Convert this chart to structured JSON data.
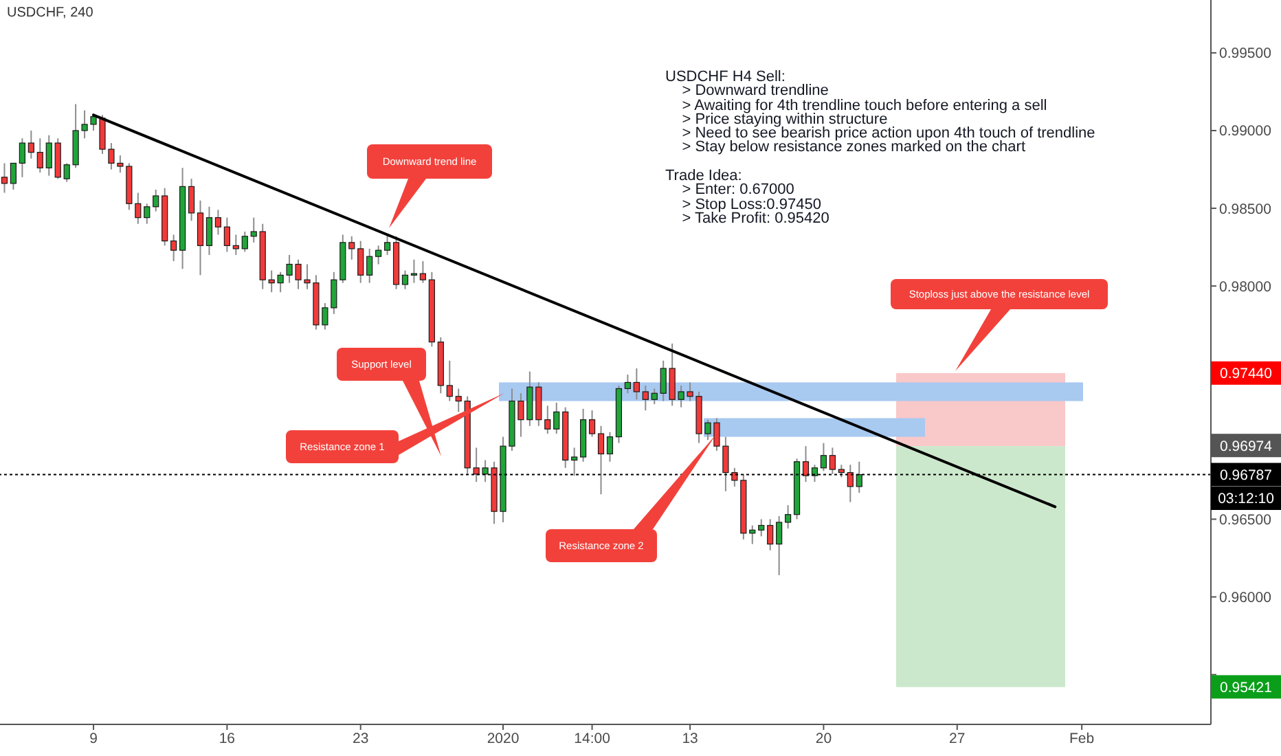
{
  "chart_data": {
    "type": "candlestick",
    "title": "USDCHF, 240",
    "categories": [
      null,
      null,
      null,
      null,
      null,
      null,
      null,
      null,
      null,
      null,
      "9",
      null,
      null,
      null,
      null,
      null,
      null,
      null,
      null,
      null,
      null,
      null,
      null,
      null,
      null,
      "16",
      null,
      null,
      null,
      null,
      null,
      null,
      null,
      null,
      null,
      null,
      null,
      null,
      null,
      null,
      "23",
      null,
      null,
      null,
      null,
      null,
      null,
      null,
      null,
      null,
      null,
      null,
      null,
      null,
      null,
      null,
      "2020",
      null,
      null,
      null,
      null,
      null,
      null,
      null,
      null,
      null,
      "14:00",
      null,
      null,
      null,
      null,
      null,
      null,
      null,
      null,
      null,
      null,
      "13",
      null,
      null,
      null,
      null,
      null,
      null,
      null,
      null,
      null,
      null,
      null,
      null,
      null,
      null,
      "20",
      null,
      null,
      null,
      null,
      null,
      null,
      null,
      null,
      null,
      null,
      null,
      null,
      null,
      null,
      "27",
      null,
      null,
      null,
      null,
      null,
      null,
      null,
      null,
      null,
      null,
      null,
      null,
      null,
      "Feb",
      null,
      null,
      null,
      null,
      null,
      null,
      null,
      null,
      null,
      null,
      null,
      null,
      null,
      null
    ],
    "ohlc": [
      [
        0.987,
        0.9879,
        0.986,
        0.9866
      ],
      [
        0.9866,
        0.9879,
        0.9862,
        0.9879
      ],
      [
        0.9879,
        0.9895,
        0.987,
        0.9892
      ],
      [
        0.9892,
        0.99,
        0.9882,
        0.9886
      ],
      [
        0.9886,
        0.9895,
        0.9873,
        0.9876
      ],
      [
        0.9876,
        0.9897,
        0.9871,
        0.9892
      ],
      [
        0.9892,
        0.9895,
        0.9869,
        0.987
      ],
      [
        0.9869,
        0.9879,
        0.9867,
        0.9878
      ],
      [
        0.9878,
        0.9917,
        0.9876,
        0.99
      ],
      [
        0.99,
        0.9913,
        0.9895,
        0.9904
      ],
      [
        0.9904,
        0.9911,
        0.99,
        0.9909
      ],
      [
        0.9908,
        0.991,
        0.9885,
        0.9888
      ],
      [
        0.9888,
        0.9892,
        0.9875,
        0.9879
      ],
      [
        0.9879,
        0.9884,
        0.9873,
        0.9877
      ],
      [
        0.9877,
        0.9879,
        0.9849,
        0.9853
      ],
      [
        0.9853,
        0.986,
        0.984,
        0.9844
      ],
      [
        0.9844,
        0.9853,
        0.984,
        0.9851
      ],
      [
        0.9851,
        0.9862,
        0.9848,
        0.9858
      ],
      [
        0.9858,
        0.9863,
        0.9826,
        0.9829
      ],
      [
        0.9829,
        0.9833,
        0.9816,
        0.9823
      ],
      [
        0.9823,
        0.9876,
        0.9811,
        0.9864
      ],
      [
        0.9864,
        0.9869,
        0.9842,
        0.9847
      ],
      [
        0.9847,
        0.9855,
        0.9807,
        0.9826
      ],
      [
        0.9826,
        0.9851,
        0.982,
        0.9844
      ],
      [
        0.9844,
        0.9849,
        0.9833,
        0.9838
      ],
      [
        0.9838,
        0.9844,
        0.9822,
        0.9826
      ],
      [
        0.9826,
        0.9833,
        0.982,
        0.9824
      ],
      [
        0.9824,
        0.9835,
        0.9822,
        0.9832
      ],
      [
        0.9832,
        0.9844,
        0.9828,
        0.9835
      ],
      [
        0.9835,
        0.984,
        0.9798,
        0.9804
      ],
      [
        0.9804,
        0.981,
        0.9796,
        0.9802
      ],
      [
        0.9802,
        0.9809,
        0.9796,
        0.9807
      ],
      [
        0.9807,
        0.982,
        0.9802,
        0.9814
      ],
      [
        0.9814,
        0.9817,
        0.9798,
        0.9804
      ],
      [
        0.9804,
        0.9814,
        0.9798,
        0.9802
      ],
      [
        0.9802,
        0.9807,
        0.9772,
        0.9775
      ],
      [
        0.9775,
        0.9789,
        0.9772,
        0.9786
      ],
      [
        0.9786,
        0.9809,
        0.9782,
        0.9804
      ],
      [
        0.9804,
        0.9833,
        0.9802,
        0.9828
      ],
      [
        0.9828,
        0.9832,
        0.9817,
        0.9824
      ],
      [
        0.9824,
        0.9829,
        0.9802,
        0.9807
      ],
      [
        0.9807,
        0.9824,
        0.9802,
        0.9819
      ],
      [
        0.9819,
        0.9826,
        0.9814,
        0.9823
      ],
      [
        0.9823,
        0.9833,
        0.982,
        0.9828
      ],
      [
        0.9828,
        0.9832,
        0.9798,
        0.9801
      ],
      [
        0.9801,
        0.981,
        0.9798,
        0.9807
      ],
      [
        0.9807,
        0.9817,
        0.9802,
        0.9808
      ],
      [
        0.9808,
        0.9816,
        0.9802,
        0.9804
      ],
      [
        0.9804,
        0.9809,
        0.9761,
        0.9764
      ],
      [
        0.9764,
        0.9767,
        0.9731,
        0.9736
      ],
      [
        0.9736,
        0.9752,
        0.9726,
        0.9729
      ],
      [
        0.9729,
        0.9734,
        0.9719,
        0.9726
      ],
      [
        0.9726,
        0.9729,
        0.9679,
        0.9683
      ],
      [
        0.9683,
        0.9696,
        0.9674,
        0.9679
      ],
      [
        0.9679,
        0.9688,
        0.9674,
        0.9683
      ],
      [
        0.9683,
        0.9687,
        0.9647,
        0.9655
      ],
      [
        0.9655,
        0.9703,
        0.9648,
        0.9697
      ],
      [
        0.9697,
        0.9734,
        0.9694,
        0.9726
      ],
      [
        0.9726,
        0.9731,
        0.9703,
        0.9714
      ],
      [
        0.9714,
        0.9745,
        0.971,
        0.9735
      ],
      [
        0.9735,
        0.9738,
        0.971,
        0.9714
      ],
      [
        0.9714,
        0.9723,
        0.9705,
        0.9708
      ],
      [
        0.9708,
        0.9725,
        0.9705,
        0.9719
      ],
      [
        0.9719,
        0.9722,
        0.9683,
        0.9688
      ],
      [
        0.9688,
        0.9696,
        0.9678,
        0.969
      ],
      [
        0.969,
        0.9721,
        0.9687,
        0.9714
      ],
      [
        0.9714,
        0.972,
        0.9703,
        0.9705
      ],
      [
        0.9705,
        0.971,
        0.9666,
        0.9692
      ],
      [
        0.9692,
        0.9706,
        0.9687,
        0.9703
      ],
      [
        0.9703,
        0.9736,
        0.9699,
        0.9734
      ],
      [
        0.9734,
        0.9743,
        0.9731,
        0.9738
      ],
      [
        0.9738,
        0.9747,
        0.9727,
        0.9732
      ],
      [
        0.9732,
        0.9736,
        0.972,
        0.9727
      ],
      [
        0.9727,
        0.9734,
        0.9724,
        0.9731
      ],
      [
        0.9731,
        0.9752,
        0.9726,
        0.9747
      ],
      [
        0.9747,
        0.9763,
        0.9723,
        0.9727
      ],
      [
        0.9727,
        0.9736,
        0.9722,
        0.9732
      ],
      [
        0.9732,
        0.9738,
        0.9726,
        0.9729
      ],
      [
        0.9729,
        0.9732,
        0.9699,
        0.9705
      ],
      [
        0.9705,
        0.9714,
        0.9701,
        0.9712
      ],
      [
        0.9712,
        0.9715,
        0.9694,
        0.9697
      ],
      [
        0.9697,
        0.9703,
        0.9668,
        0.968
      ],
      [
        0.968,
        0.9683,
        0.9671,
        0.9675
      ],
      [
        0.9675,
        0.9679,
        0.9637,
        0.9641
      ],
      [
        0.9641,
        0.9646,
        0.9634,
        0.9643
      ],
      [
        0.9643,
        0.965,
        0.9639,
        0.9646
      ],
      [
        0.9646,
        0.965,
        0.963,
        0.9634
      ],
      [
        0.9634,
        0.9652,
        0.9614,
        0.9648
      ],
      [
        0.9648,
        0.9659,
        0.9644,
        0.9653
      ],
      [
        0.9653,
        0.9689,
        0.965,
        0.9687
      ],
      [
        0.9687,
        0.9697,
        0.9674,
        0.9678
      ],
      [
        0.9678,
        0.9685,
        0.9674,
        0.9683
      ],
      [
        0.9683,
        0.9699,
        0.9681,
        0.9691
      ],
      [
        0.9691,
        0.9696,
        0.9679,
        0.9682
      ],
      [
        0.9682,
        0.9685,
        0.9677,
        0.968
      ],
      [
        0.968,
        0.9685,
        0.9661,
        0.9671
      ],
      [
        0.9671,
        0.9687,
        0.9667,
        0.96787
      ],
      null,
      null,
      null,
      null,
      null,
      null,
      null,
      null,
      null,
      null,
      null,
      null,
      null,
      null,
      null,
      null,
      null,
      null,
      null,
      null,
      null,
      null,
      null,
      null,
      null,
      null,
      null,
      null,
      null,
      null,
      null,
      null,
      null,
      null,
      null,
      null,
      null,
      null,
      null
    ],
    "colors": [
      "#f23a3a",
      "#21a53a",
      "#21a53a",
      "#f23a3a",
      "#f23a3a",
      "#21a53a",
      "#f23a3a",
      "#21a53a",
      "#21a53a",
      "#21a53a",
      "#21a53a",
      "#f23a3a",
      "#f23a3a",
      "#f23a3a",
      "#f23a3a",
      "#f23a3a",
      "#21a53a",
      "#21a53a",
      "#f23a3a",
      "#f23a3a",
      "#21a53a",
      "#f23a3a",
      "#f23a3a",
      "#21a53a",
      "#f23a3a",
      "#f23a3a",
      "#f23a3a",
      "#21a53a",
      "#21a53a",
      "#f23a3a",
      "#f23a3a",
      "#21a53a",
      "#21a53a",
      "#f23a3a",
      "#f23a3a",
      "#f23a3a",
      "#21a53a",
      "#21a53a",
      "#21a53a",
      "#f23a3a",
      "#f23a3a",
      "#21a53a",
      "#21a53a",
      "#21a53a",
      "#f23a3a",
      "#21a53a",
      "#21a53a",
      "#f23a3a",
      "#f23a3a",
      "#f23a3a",
      "#f23a3a",
      "#f23a3a",
      "#f23a3a",
      "#f23a3a",
      "#21a53a",
      "#f23a3a",
      "#21a53a",
      "#21a53a",
      "#f23a3a",
      "#21a53a",
      "#f23a3a",
      "#f23a3a",
      "#21a53a",
      "#f23a3a",
      "#21a53a",
      "#21a53a",
      "#f23a3a",
      "#f23a3a",
      "#21a53a",
      "#21a53a",
      "#21a53a",
      "#f23a3a",
      "#f23a3a",
      "#21a53a",
      "#21a53a",
      "#f23a3a",
      "#21a53a",
      "#f23a3a",
      "#f23a3a",
      "#21a53a",
      "#f23a3a",
      "#f23a3a",
      "#f23a3a",
      "#f23a3a",
      "#21a53a",
      "#21a53a",
      "#f23a3a",
      "#21a53a",
      "#21a53a",
      "#21a53a",
      "#f23a3a",
      "#21a53a",
      "#21a53a",
      "#f23a3a",
      "#f23a3a",
      "#f23a3a",
      "#21a53a",
      null,
      null,
      null,
      null,
      null,
      null,
      null,
      null,
      null,
      null,
      null,
      null,
      null,
      null,
      null,
      null,
      null,
      null,
      null,
      null,
      null,
      null,
      null,
      null,
      null,
      null,
      null,
      null,
      null,
      null,
      null,
      null,
      null,
      null,
      null,
      null,
      null,
      null,
      null
    ],
    "series": [
      {
        "type": "line",
        "color": "#000000",
        "values": [
          null,
          null,
          null,
          null,
          null,
          null,
          null,
          null,
          null,
          null,
          0.991,
          null,
          null,
          null,
          null,
          null,
          null,
          null,
          null,
          null,
          null,
          null,
          null,
          null,
          null,
          null,
          null,
          null,
          null,
          null,
          null,
          null,
          null,
          null,
          null,
          null,
          null,
          null,
          null,
          null,
          null,
          null,
          null,
          null,
          null,
          null,
          null,
          null,
          null,
          null,
          null,
          null,
          null,
          null,
          null,
          null,
          null,
          null,
          null,
          null,
          null,
          null,
          null,
          null,
          null,
          null,
          null,
          null,
          null,
          null,
          null,
          null,
          null,
          null,
          null,
          null,
          null,
          null,
          null,
          null,
          null,
          null,
          null,
          null,
          null,
          null,
          null,
          null,
          null,
          null,
          null,
          null,
          null,
          null,
          null,
          null,
          null,
          null,
          null,
          null,
          null,
          null,
          null,
          null,
          null,
          null,
          null,
          null,
          null,
          null,
          null,
          null,
          null,
          null,
          null,
          null,
          null,
          null,
          0.9658,
          null,
          null,
          null,
          null,
          null,
          null,
          null,
          null,
          null,
          null,
          null,
          null,
          null,
          null,
          null,
          null,
          null
        ]
      }
    ],
    "bands": [
      {
        "axis": "y",
        "from": 0.9697,
        "to": 0.9744,
        "color": "#f9c8c8"
      },
      {
        "axis": "y",
        "from": 0.9542,
        "to": 0.9697,
        "color": "#cce8cc"
      },
      {
        "axis": "y",
        "from": 0.9726,
        "to": 0.9738,
        "color": "#a8c9f0"
      },
      {
        "axis": "y",
        "from": 0.9703,
        "to": 0.9715,
        "color": "#a8c9f0"
      }
    ],
    "ylim": [
      0.9518,
      0.9984
    ],
    "yticks": [
      {
        "value": 0.955,
        "label": null
      },
      {
        "value": 0.96,
        "label": "0.96000"
      },
      {
        "value": 0.965,
        "label": "0.96500"
      },
      {
        "value": 0.975,
        "label": null
      },
      {
        "value": 0.98,
        "label": "0.98000"
      },
      {
        "value": 0.985,
        "label": "0.98500"
      },
      {
        "value": 0.99,
        "label": "0.99000"
      },
      {
        "value": 0.995,
        "label": "0.99500"
      }
    ],
    "ref_lines": [
      {
        "axis": "y",
        "value": 0.96787,
        "label": "0.96787",
        "color": "#000000",
        "line_style": "dotted"
      }
    ],
    "annotations": [
      "USDCHF H4 Sell:\n    > Downward trendline\n    > Awaiting for 4th trendline touch before entering a sell\n    > Price staying within structure\n    > Need to see bearish price action upon 4th touch of trendline\n    > Stay below resistance zones marked on the chart\n\nTrade Idea:\n    > Enter: 0.67000\n    > Stop Loss:0.97450\n    > Take Profit: 0.95420",
      "Downward trend line",
      "Support level",
      "Resistance zone 1",
      "Resistance zone 2",
      "Stoploss just above the resistance level",
      "0.97440",
      "0.96974",
      "0.95421",
      "03:12:10"
    ]
  }
}
